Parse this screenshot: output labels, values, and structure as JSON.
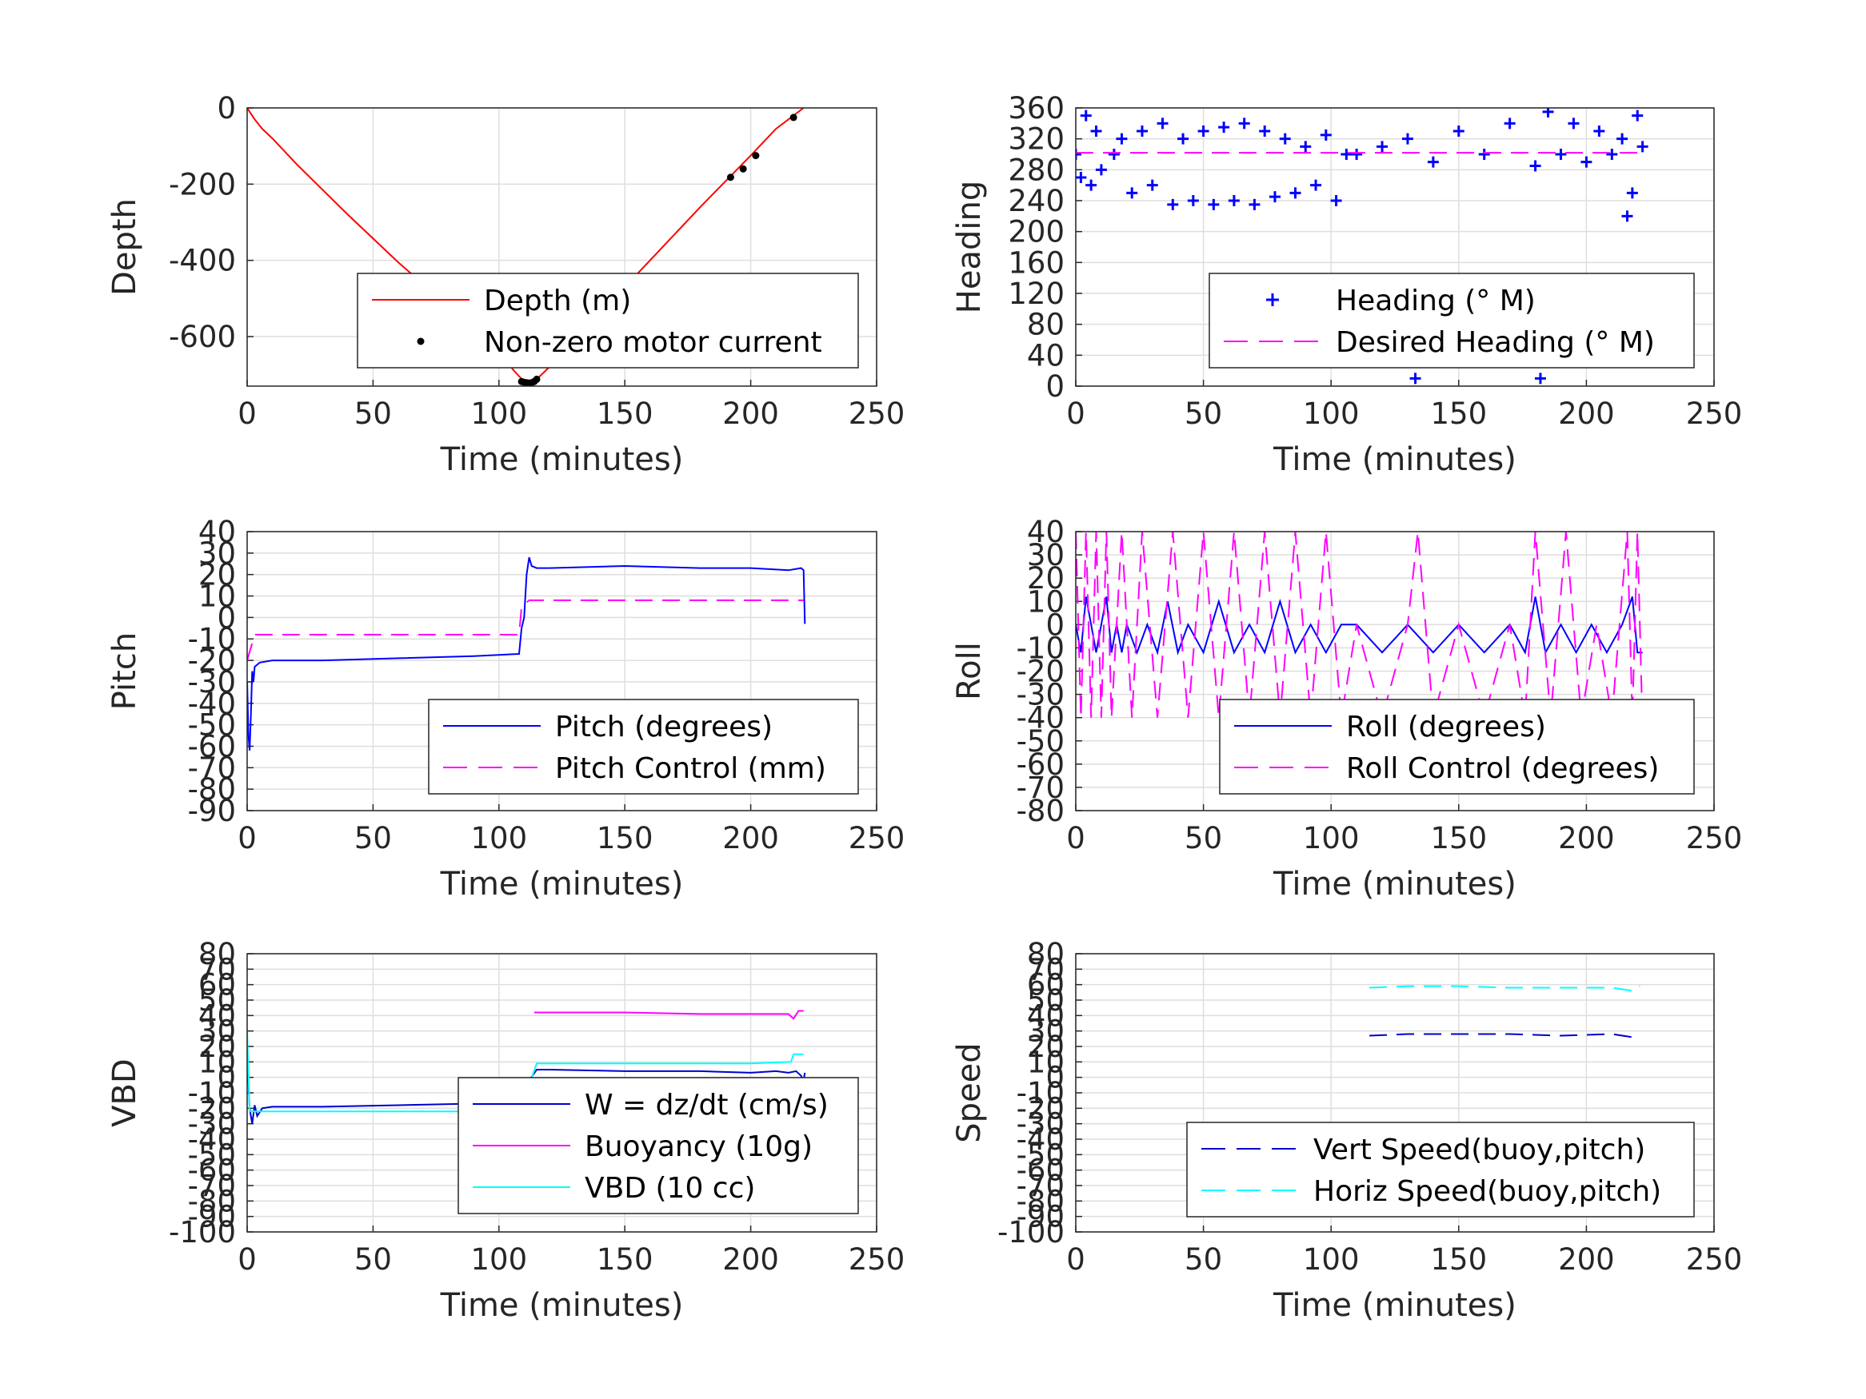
{
  "chart_data": [
    {
      "id": "depth",
      "type": "line",
      "xlabel": "Time (minutes)",
      "ylabel": "Depth",
      "xlim": [
        0,
        250
      ],
      "ylim": [
        -730,
        0
      ],
      "xticks": [
        "0",
        "50",
        "100",
        "150",
        "200",
        "250"
      ],
      "yticks": [
        {
          "v": 0,
          "t": "0"
        },
        {
          "v": -200,
          "t": "-200"
        },
        {
          "v": -400,
          "t": "-400"
        },
        {
          "v": -600,
          "t": "-600"
        }
      ],
      "grid": true,
      "legend_position": "lower-right",
      "series": [
        {
          "name": "Depth (m)",
          "style": "solid",
          "color": "#ff0000",
          "x": [
            0,
            1,
            3,
            6,
            10,
            20,
            40,
            60,
            80,
            100,
            106,
            110,
            112,
            115,
            120,
            140,
            160,
            180,
            200,
            210,
            221
          ],
          "y": [
            0,
            -10,
            -30,
            -55,
            -80,
            -150,
            -280,
            -405,
            -520,
            -640,
            -690,
            -718,
            -722,
            -712,
            -680,
            -540,
            -400,
            -260,
            -125,
            -55,
            0
          ]
        },
        {
          "name": "Non-zero motor current",
          "style": "dots",
          "color": "#000000",
          "x": [
            109,
            110,
            111,
            112,
            113,
            114,
            115,
            192,
            197,
            202,
            217
          ],
          "y": [
            -718,
            -720,
            -721,
            -722,
            -721,
            -718,
            -712,
            -182,
            -160,
            -125,
            -25
          ]
        }
      ]
    },
    {
      "id": "heading",
      "type": "scatter",
      "xlabel": "Time (minutes)",
      "ylabel": "Heading",
      "xlim": [
        0,
        250
      ],
      "ylim": [
        0,
        360
      ],
      "xticks": [
        "0",
        "50",
        "100",
        "150",
        "200",
        "250"
      ],
      "yticks": [
        {
          "v": 0,
          "t": "0"
        },
        {
          "v": 40,
          "t": "40"
        },
        {
          "v": 80,
          "t": "80"
        },
        {
          "v": 120,
          "t": "120"
        },
        {
          "v": 160,
          "t": "160"
        },
        {
          "v": 200,
          "t": "200"
        },
        {
          "v": 240,
          "t": "240"
        },
        {
          "v": 280,
          "t": "280"
        },
        {
          "v": 320,
          "t": "320"
        },
        {
          "v": 360,
          "t": "360"
        }
      ],
      "grid": true,
      "legend_position": "lower-right",
      "series": [
        {
          "name": "Heading (° M)",
          "style": "plus",
          "color": "#0000ff",
          "x": [
            0,
            2,
            4,
            6,
            8,
            10,
            15,
            18,
            22,
            26,
            30,
            34,
            38,
            42,
            46,
            50,
            54,
            58,
            62,
            66,
            70,
            74,
            78,
            82,
            86,
            90,
            94,
            98,
            102,
            106,
            110,
            120,
            130,
            133,
            140,
            150,
            160,
            170,
            180,
            182,
            185,
            190,
            195,
            200,
            205,
            210,
            214,
            216,
            218,
            220,
            222
          ],
          "y": [
            300,
            270,
            350,
            260,
            330,
            280,
            300,
            320,
            250,
            330,
            260,
            340,
            235,
            320,
            240,
            330,
            235,
            335,
            240,
            340,
            235,
            330,
            245,
            320,
            250,
            310,
            260,
            325,
            240,
            300,
            300,
            310,
            320,
            10,
            290,
            330,
            300,
            340,
            285,
            10,
            355,
            300,
            340,
            290,
            330,
            300,
            320,
            220,
            250,
            350,
            310
          ]
        },
        {
          "name": "Desired Heading (° M)",
          "style": "dashed",
          "color": "#ff00ff",
          "x": [
            0,
            222
          ],
          "y": [
            302,
            302
          ]
        }
      ]
    },
    {
      "id": "pitch",
      "type": "line",
      "xlabel": "Time (minutes)",
      "ylabel": "Pitch",
      "xlim": [
        0,
        250
      ],
      "ylim": [
        -90,
        40
      ],
      "xticks": [
        "0",
        "50",
        "100",
        "150",
        "200",
        "250"
      ],
      "yticks": [
        {
          "v": 40,
          "t": "40"
        },
        {
          "v": 30,
          "t": "30"
        },
        {
          "v": 20,
          "t": "20"
        },
        {
          "v": 10,
          "t": "10"
        },
        {
          "v": 0,
          "t": "0"
        },
        {
          "v": -10,
          "t": "-10"
        },
        {
          "v": -20,
          "t": "-20"
        },
        {
          "v": -30,
          "t": "-30"
        },
        {
          "v": -40,
          "t": "-40"
        },
        {
          "v": -50,
          "t": "-50"
        },
        {
          "v": -60,
          "t": "-60"
        },
        {
          "v": -70,
          "t": "-70"
        },
        {
          "v": -80,
          "t": "-80"
        },
        {
          "v": -90,
          "t": "-90"
        }
      ],
      "grid": true,
      "legend_position": "lower-right",
      "series": [
        {
          "name": "Pitch (degrees)",
          "style": "solid",
          "color": "#0000ff",
          "x": [
            0,
            0.5,
            1,
            1.5,
            2,
            2.5,
            3,
            5,
            10,
            30,
            60,
            90,
            108,
            109,
            110,
            111,
            112,
            113,
            115,
            120,
            150,
            180,
            200,
            215,
            220,
            221,
            221.5
          ],
          "y": [
            -30,
            -55,
            -62,
            -45,
            -25,
            -30,
            -23,
            -21,
            -20,
            -20,
            -19,
            -18,
            -17,
            -5,
            0,
            20,
            28,
            24,
            23,
            23,
            24,
            23,
            23,
            22,
            23,
            22,
            -3
          ]
        },
        {
          "name": "Pitch Control (mm)",
          "style": "dashed",
          "color": "#ff00ff",
          "x": [
            0,
            3,
            5,
            10,
            50,
            100,
            108,
            109,
            112,
            115,
            150,
            200,
            221
          ],
          "y": [
            -20,
            -8,
            -8,
            -8,
            -8,
            -8,
            -8,
            5,
            8,
            8,
            8,
            8,
            8
          ]
        }
      ]
    },
    {
      "id": "roll",
      "type": "line",
      "xlabel": "Time (minutes)",
      "ylabel": "Roll",
      "xlim": [
        0,
        250
      ],
      "ylim": [
        -80,
        40
      ],
      "xticks": [
        "0",
        "50",
        "100",
        "150",
        "200",
        "250"
      ],
      "yticks": [
        {
          "v": 40,
          "t": "40"
        },
        {
          "v": 30,
          "t": "30"
        },
        {
          "v": 20,
          "t": "20"
        },
        {
          "v": 10,
          "t": "10"
        },
        {
          "v": 0,
          "t": "0"
        },
        {
          "v": -10,
          "t": "-10"
        },
        {
          "v": -20,
          "t": "-20"
        },
        {
          "v": -30,
          "t": "-30"
        },
        {
          "v": -40,
          "t": "-40"
        },
        {
          "v": -50,
          "t": "-50"
        },
        {
          "v": -60,
          "t": "-60"
        },
        {
          "v": -70,
          "t": "-70"
        },
        {
          "v": -80,
          "t": "-80"
        }
      ],
      "grid": true,
      "legend_position": "lower-right",
      "series": [
        {
          "name": "Roll (degrees)",
          "style": "solid",
          "color": "#0000ff",
          "x": [
            0,
            2,
            4,
            6,
            8,
            10,
            12,
            14,
            16,
            18,
            20,
            24,
            28,
            32,
            36,
            40,
            44,
            50,
            56,
            62,
            68,
            74,
            80,
            86,
            92,
            98,
            104,
            110,
            120,
            130,
            140,
            150,
            160,
            170,
            176,
            180,
            184,
            190,
            196,
            202,
            208,
            214,
            218,
            220,
            222
          ],
          "y": [
            0,
            -12,
            12,
            0,
            -12,
            0,
            12,
            -12,
            0,
            -12,
            0,
            -12,
            0,
            -12,
            10,
            -12,
            0,
            -12,
            10,
            -12,
            0,
            -12,
            10,
            -12,
            0,
            -12,
            0,
            0,
            -12,
            0,
            -12,
            0,
            -12,
            0,
            -12,
            12,
            -12,
            0,
            -12,
            0,
            -12,
            0,
            12,
            -12,
            -12
          ]
        },
        {
          "name": "Roll Control (degrees)",
          "style": "dashed",
          "color": "#ff00ff",
          "x": [
            0,
            2,
            4,
            6,
            8,
            10,
            12,
            14,
            18,
            22,
            26,
            32,
            38,
            44,
            50,
            56,
            62,
            68,
            74,
            80,
            86,
            92,
            98,
            104,
            110,
            120,
            130,
            134,
            140,
            150,
            160,
            170,
            176,
            180,
            186,
            192,
            198,
            204,
            210,
            216,
            218,
            220,
            222
          ],
          "y": [
            40,
            -40,
            40,
            -40,
            40,
            -40,
            40,
            -40,
            40,
            -40,
            40,
            -40,
            40,
            -40,
            40,
            -40,
            40,
            -40,
            40,
            -40,
            40,
            -40,
            40,
            -40,
            0,
            -40,
            0,
            40,
            -40,
            0,
            -40,
            0,
            -40,
            40,
            -40,
            40,
            -40,
            0,
            -40,
            40,
            -40,
            40,
            -44
          ]
        }
      ]
    },
    {
      "id": "vbd",
      "type": "line",
      "xlabel": "Time (minutes)",
      "ylabel": "VBD",
      "xlim": [
        0,
        250
      ],
      "ylim": [
        -100,
        80
      ],
      "xticks": [
        "0",
        "50",
        "100",
        "150",
        "200",
        "250"
      ],
      "yticks": [
        {
          "v": 80,
          "t": "80"
        },
        {
          "v": 70,
          "t": "70"
        },
        {
          "v": 60,
          "t": "60"
        },
        {
          "v": 50,
          "t": "50"
        },
        {
          "v": 40,
          "t": "40"
        },
        {
          "v": 30,
          "t": "30"
        },
        {
          "v": 20,
          "t": "20"
        },
        {
          "v": 10,
          "t": "10"
        },
        {
          "v": 0,
          "t": "0"
        },
        {
          "v": -10,
          "t": "-10"
        },
        {
          "v": -20,
          "t": "-20"
        },
        {
          "v": -30,
          "t": "-30"
        },
        {
          "v": -40,
          "t": "-40"
        },
        {
          "v": -50,
          "t": "-50"
        },
        {
          "v": -60,
          "t": "-60"
        },
        {
          "v": -70,
          "t": "-70"
        },
        {
          "v": -80,
          "t": "-80"
        },
        {
          "v": -90,
          "t": "-90"
        },
        {
          "v": -100,
          "t": "-100"
        }
      ],
      "grid": true,
      "legend_position": "lower-right",
      "series": [
        {
          "name": "W = dz/dt (cm/s)",
          "style": "solid",
          "color": "#0000cc",
          "x": [
            0,
            1,
            2,
            3,
            4,
            6,
            10,
            30,
            60,
            90,
            108,
            109,
            112,
            115,
            120,
            150,
            180,
            200,
            210,
            215,
            218,
            220,
            221,
            221.5
          ],
          "y": [
            15,
            -20,
            -30,
            -18,
            -25,
            -20,
            -19,
            -19,
            -18,
            -17,
            -17,
            -15,
            -2,
            5,
            5,
            4,
            4,
            3,
            4,
            3,
            4,
            1,
            -2,
            3
          ]
        },
        {
          "name": "Buoyancy (10g)",
          "style": "solid",
          "color": "#ff00ff",
          "x": [
            114,
            120,
            150,
            180,
            200,
            210,
            215,
            217,
            219,
            221
          ],
          "y": [
            42,
            42,
            42,
            41,
            41,
            41,
            41,
            38,
            43,
            43
          ]
        },
        {
          "name": "VBD (10 cc)",
          "style": "solid",
          "color": "#00ffff",
          "x": [
            0,
            1,
            2,
            3,
            10,
            50,
            100,
            108,
            112,
            115,
            150,
            200,
            216,
            217,
            220,
            221
          ],
          "y": [
            30,
            -22,
            -22,
            -22,
            -22,
            -22,
            -22,
            -22,
            -5,
            9,
            9,
            9,
            10,
            15,
            15,
            15
          ]
        }
      ]
    },
    {
      "id": "speed",
      "type": "line",
      "xlabel": "Time (minutes)",
      "ylabel": "Speed",
      "xlim": [
        0,
        250
      ],
      "ylim": [
        -100,
        80
      ],
      "xticks": [
        "0",
        "50",
        "100",
        "150",
        "200",
        "250"
      ],
      "yticks": [
        {
          "v": 80,
          "t": "80"
        },
        {
          "v": 70,
          "t": "70"
        },
        {
          "v": 60,
          "t": "60"
        },
        {
          "v": 50,
          "t": "50"
        },
        {
          "v": 40,
          "t": "40"
        },
        {
          "v": 30,
          "t": "30"
        },
        {
          "v": 20,
          "t": "20"
        },
        {
          "v": 10,
          "t": "10"
        },
        {
          "v": 0,
          "t": "0"
        },
        {
          "v": -10,
          "t": "-10"
        },
        {
          "v": -20,
          "t": "-20"
        },
        {
          "v": -30,
          "t": "-30"
        },
        {
          "v": -40,
          "t": "-40"
        },
        {
          "v": -50,
          "t": "-50"
        },
        {
          "v": -60,
          "t": "-60"
        },
        {
          "v": -70,
          "t": "-70"
        },
        {
          "v": -80,
          "t": "-80"
        },
        {
          "v": -90,
          "t": "-90"
        },
        {
          "v": -100,
          "t": "-100"
        }
      ],
      "grid": true,
      "legend_position": "lower-right",
      "series": [
        {
          "name": "Vert Speed(buoy,pitch)",
          "style": "dashed",
          "color": "#0000cc",
          "x": [
            115,
            130,
            150,
            170,
            190,
            210,
            218,
            220,
            221
          ],
          "y": [
            27,
            28,
            28,
            28,
            27,
            28,
            26,
            28,
            28
          ]
        },
        {
          "name": "Horiz Speed(buoy,pitch)",
          "style": "dashed",
          "color": "#00ffff",
          "x": [
            115,
            130,
            150,
            170,
            190,
            210,
            218,
            220,
            221
          ],
          "y": [
            58,
            59,
            59,
            58,
            58,
            58,
            56,
            59,
            59
          ]
        }
      ]
    }
  ]
}
